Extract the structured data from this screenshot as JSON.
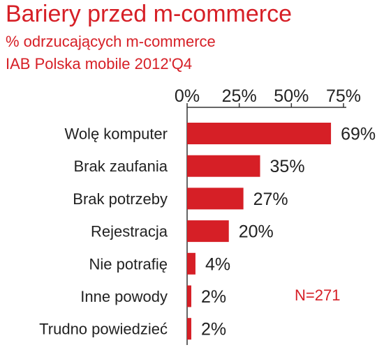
{
  "chart_data": {
    "type": "bar",
    "orientation": "horizontal",
    "title": "Bariery przed m-commerce",
    "subtitle": "% odrzucających m-commerce",
    "source": "IAB Polska mobile 2012'Q4",
    "categories": [
      "Wolę komputer",
      "Brak zaufania",
      "Brak potrzeby",
      "Rejestracja",
      "Nie potrafię",
      "Inne powody",
      "Trudno powiedzieć"
    ],
    "values": [
      69,
      35,
      27,
      20,
      4,
      2,
      2
    ],
    "value_labels": [
      "69%",
      "35%",
      "27%",
      "20%",
      "4%",
      "2%",
      "2%"
    ],
    "x_ticks": [
      0,
      25,
      50,
      75
    ],
    "x_tick_labels": [
      "0%",
      "25%",
      "50%",
      "75%"
    ],
    "xlim": [
      0,
      75
    ],
    "axis_position": "top",
    "grid": false,
    "legend": "none",
    "annotation": "N=271",
    "colors": {
      "bar": "#d61f26",
      "text": "#d61f26",
      "axis": "#333333",
      "label": "#222222"
    }
  }
}
